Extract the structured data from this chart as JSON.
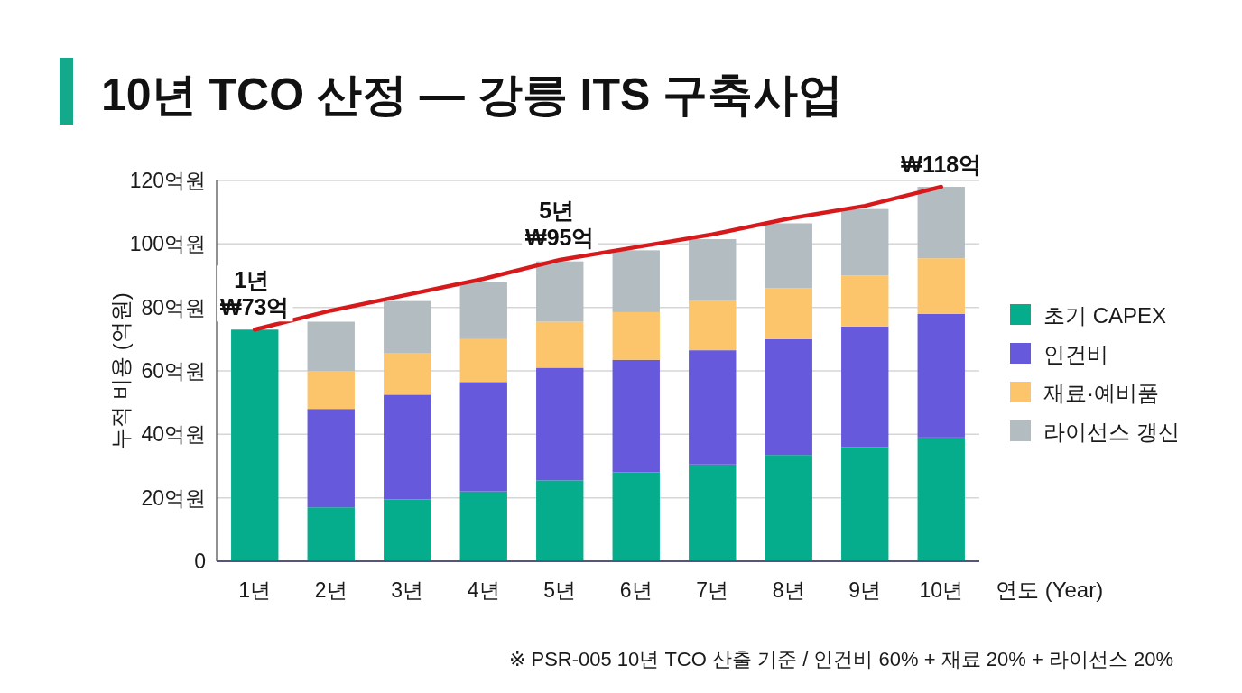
{
  "chart_data": {
    "type": "bar",
    "stacked": true,
    "title": "10년 TCO 산정 — 강릉 ITS 구축사업",
    "xlabel": "연도 (Year)",
    "ylabel": "누적 비용 (억원)",
    "categories": [
      "1년",
      "2년",
      "3년",
      "4년",
      "5년",
      "6년",
      "7년",
      "8년",
      "9년",
      "10년"
    ],
    "series": [
      {
        "name": "초기 CAPEX",
        "color": "#05ad8c",
        "values": [
          73,
          17,
          19.5,
          22,
          25.5,
          28,
          30.5,
          33.5,
          36,
          39
        ]
      },
      {
        "name": "인건비",
        "color": "#6659dc",
        "values": [
          null,
          31,
          33,
          34.5,
          35.5,
          35.5,
          36,
          36.5,
          38,
          39
        ]
      },
      {
        "name": "재료·예비품",
        "color": "#fdc56b",
        "values": [
          null,
          12,
          13,
          13.5,
          14.5,
          15,
          15.5,
          16,
          16,
          17.5
        ]
      },
      {
        "name": "라이선스 갱신",
        "color": "#b3bcc1",
        "values": [
          null,
          15.5,
          16.5,
          18,
          19,
          19.5,
          19.5,
          20.5,
          21,
          22.5
        ]
      },
      {
        "type": "line",
        "color": "#d7191c",
        "values": [
          73,
          79,
          84,
          89,
          95,
          99,
          103,
          108,
          112,
          118
        ]
      }
    ],
    "ylim": [
      0,
      120
    ],
    "yticks": [
      0,
      {
        "value": 20,
        "label": "20억원"
      },
      {
        "value": 40,
        "label": "40억원"
      },
      {
        "value": 60,
        "label": "60억원"
      },
      {
        "value": 80,
        "label": "80억원"
      },
      {
        "value": 100,
        "label": "100억원"
      },
      {
        "value": 120,
        "label": "120억원"
      }
    ],
    "grid": "y",
    "legend": "right",
    "annotations": [
      {
        "text": "1년 ₩73억",
        "x": "1년",
        "y": 73
      },
      {
        "text": "5년 ₩95억",
        "x": "5년",
        "y": 95
      },
      {
        "text": "₩118억",
        "x": "10년",
        "y": 118
      },
      "※ PSR-005 10년 TCO 산출 기준 / 인건비 60% + 재료 20% + 라이선스 20%"
    ]
  }
}
